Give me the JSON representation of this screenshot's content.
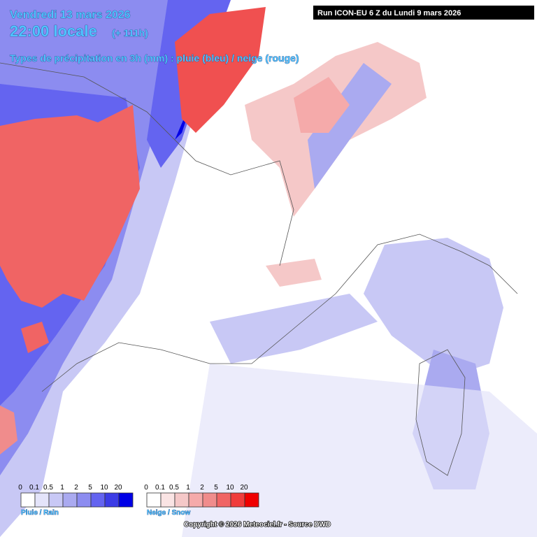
{
  "header": {
    "date": "Vendredi 13 mars 2026",
    "time": "22:00 locale",
    "lead": "(+ 111h)",
    "subtitle": "Types de précipitation en 3h (mm) : pluie (bleu) / neige (rouge)"
  },
  "run_info": "Run ICON-EU 6 Z du Lundi 9 mars 2026",
  "legend_rain": {
    "title": "Pluie / Rain",
    "labels": [
      "0",
      "0.1",
      "0.5",
      "1",
      "2",
      "5",
      "10",
      "20"
    ],
    "colors": [
      "#ffffff",
      "#e4e4fa",
      "#c8c8f5",
      "#aaaaf0",
      "#8c8cf0",
      "#6464f0",
      "#3c3ce6",
      "#0000e6"
    ]
  },
  "legend_snow": {
    "title": "Neige / Snow",
    "labels": [
      "0",
      "0.1",
      "0.5",
      "1",
      "2",
      "5",
      "10",
      "20"
    ],
    "colors": [
      "#ffffff",
      "#fae4e4",
      "#f5c8c8",
      "#f5aaaa",
      "#f08c8c",
      "#f06464",
      "#f03c3c",
      "#f00000"
    ]
  },
  "copyright": "Copyright © 2026 Meteociel.fr - Source DWD"
}
